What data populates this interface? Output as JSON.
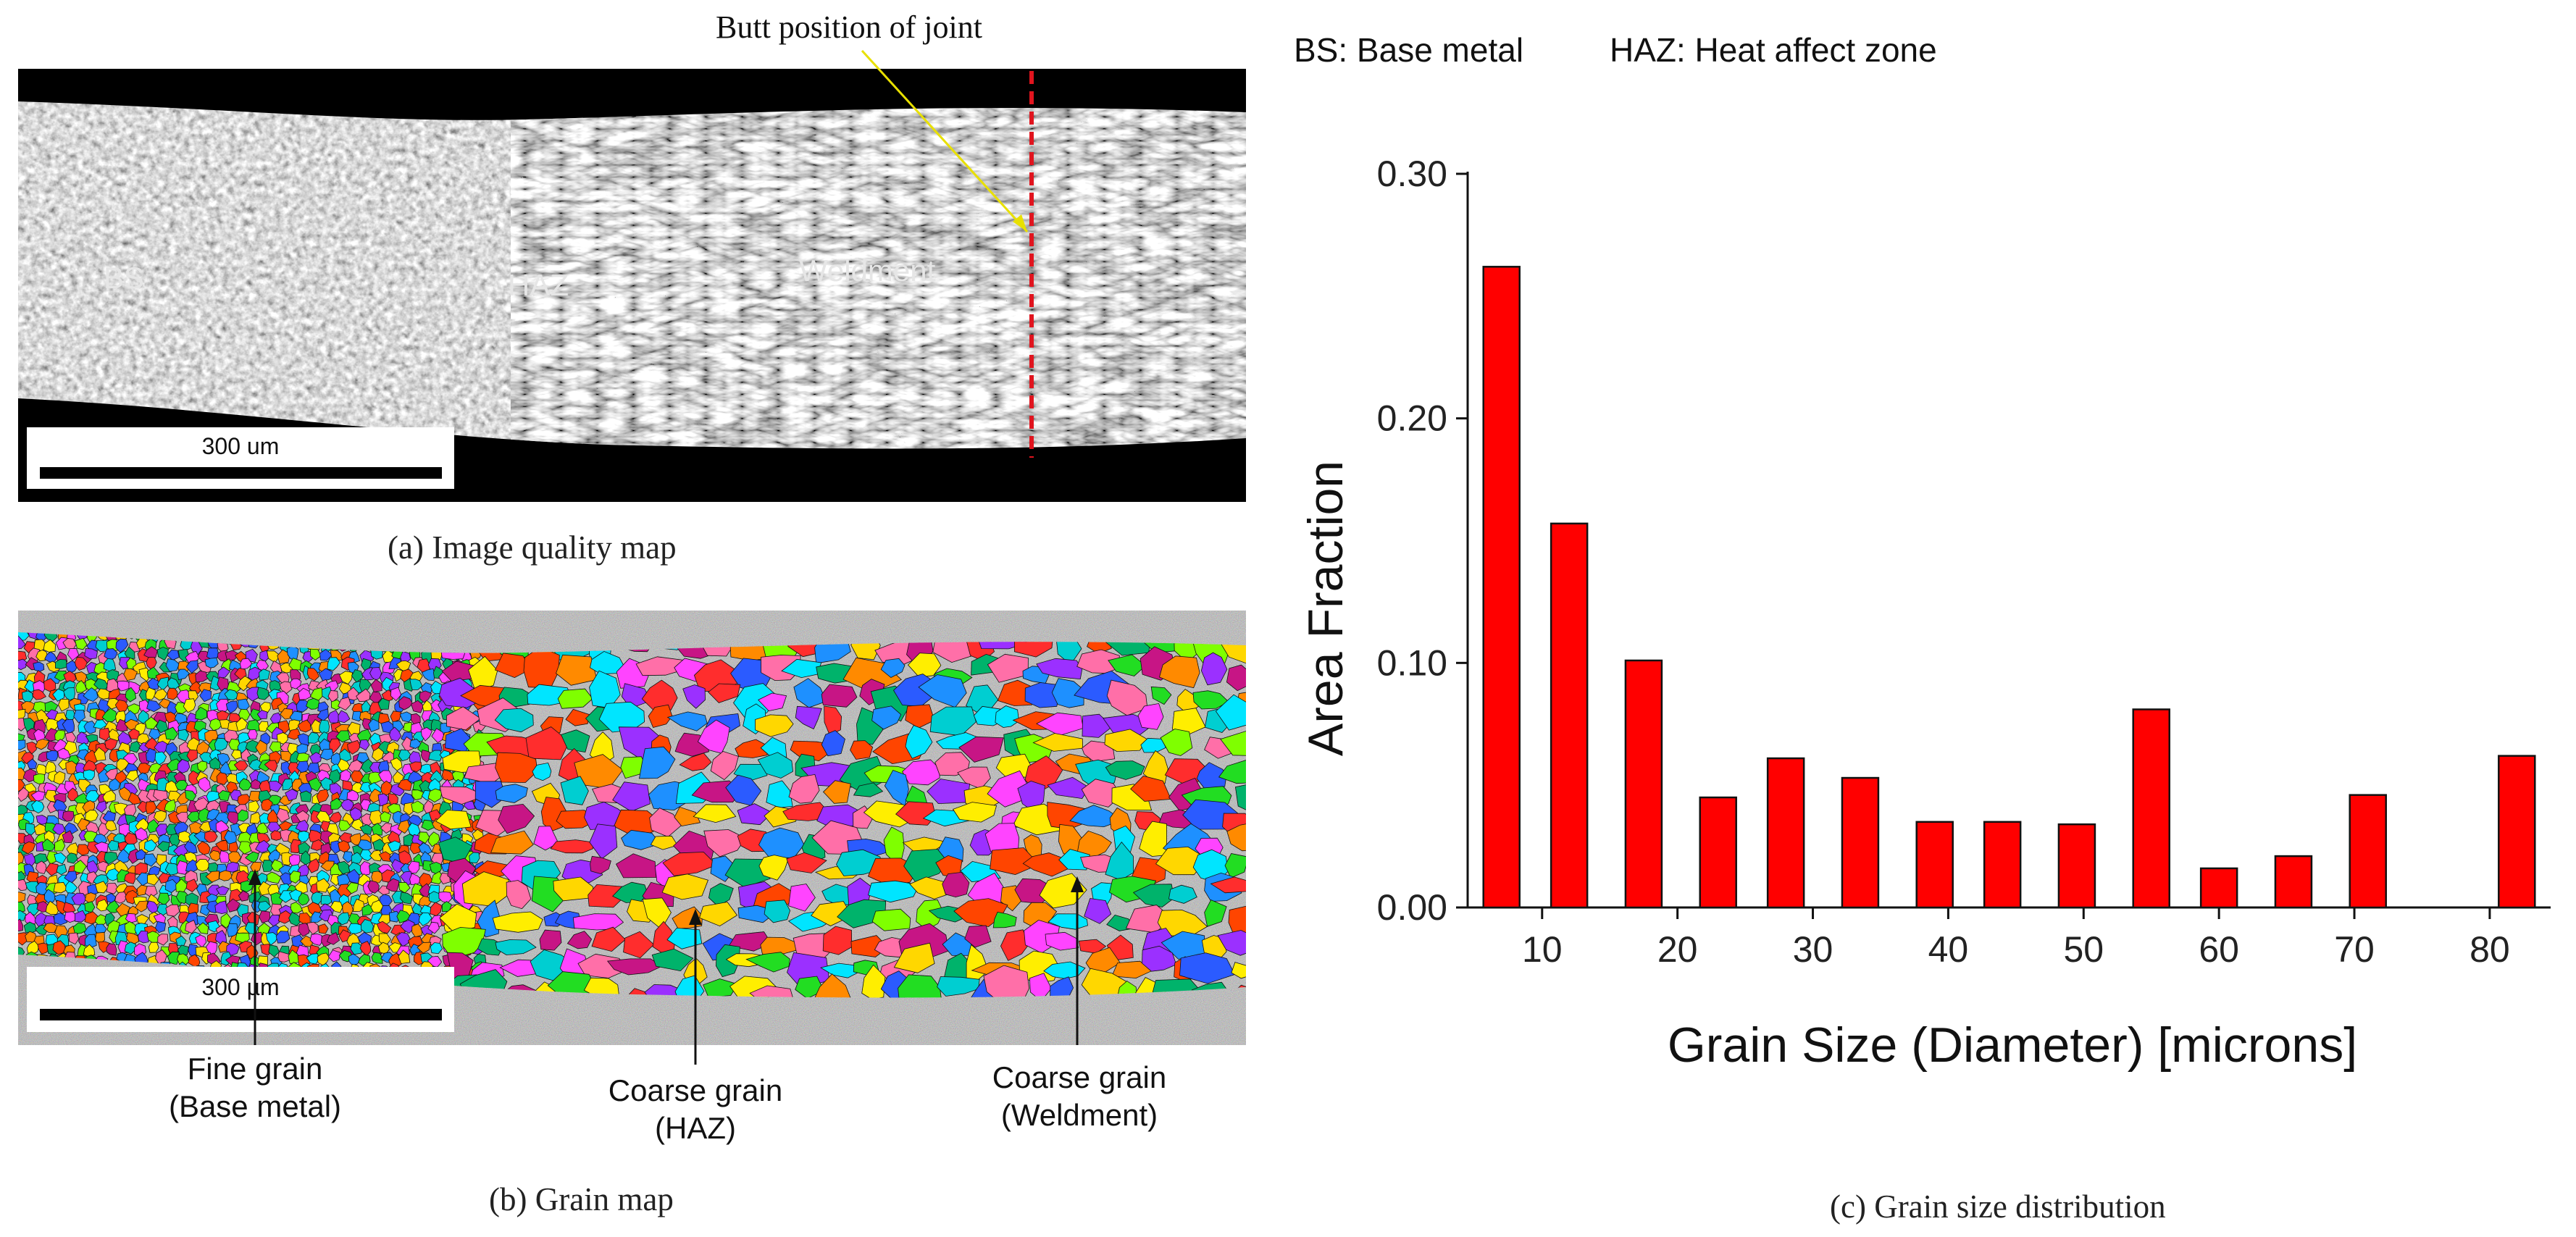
{
  "panel_a": {
    "annotation": "Butt position of joint",
    "zone_bs": "BS",
    "zone_haz": "HAZ",
    "zone_weldment": "Weldment",
    "scale": "300 um",
    "caption": "(a) Image quality  map"
  },
  "panel_b": {
    "scale": "300 µm",
    "labels": [
      {
        "line1": "Fine grain",
        "line2": "(Base metal)"
      },
      {
        "line1": "Coarse grain",
        "line2": "(HAZ)"
      },
      {
        "line1": "Coarse grain",
        "line2": "(Weldment)"
      }
    ],
    "caption": "(b) Grain map"
  },
  "legend": {
    "bs": "BS: Base metal",
    "haz": "HAZ: Heat affect zone"
  },
  "chart_data": {
    "type": "bar",
    "xlabel": "Grain Size (Diameter) [microns]",
    "ylabel": "Area Fraction",
    "x": [
      7,
      12,
      17.5,
      23,
      28,
      33.5,
      39,
      44,
      49.5,
      55,
      60,
      65.5,
      71,
      76.5,
      82
    ],
    "values": [
      0.262,
      0.157,
      0.101,
      0.045,
      0.061,
      0.053,
      0.035,
      0.035,
      0.034,
      0.081,
      0.016,
      0.021,
      0.046,
      0.0,
      0.062
    ],
    "xlim": [
      4.5,
      84.5
    ],
    "ylim": [
      0,
      0.3
    ],
    "xticks": [
      10,
      20,
      30,
      40,
      50,
      60,
      70,
      80
    ],
    "yticks": [
      "0.00",
      "0.10",
      "0.20",
      "0.30"
    ],
    "bar_color": "#ff0000",
    "grid": false
  },
  "panel_c": {
    "caption": "(c) Grain size distribution"
  }
}
